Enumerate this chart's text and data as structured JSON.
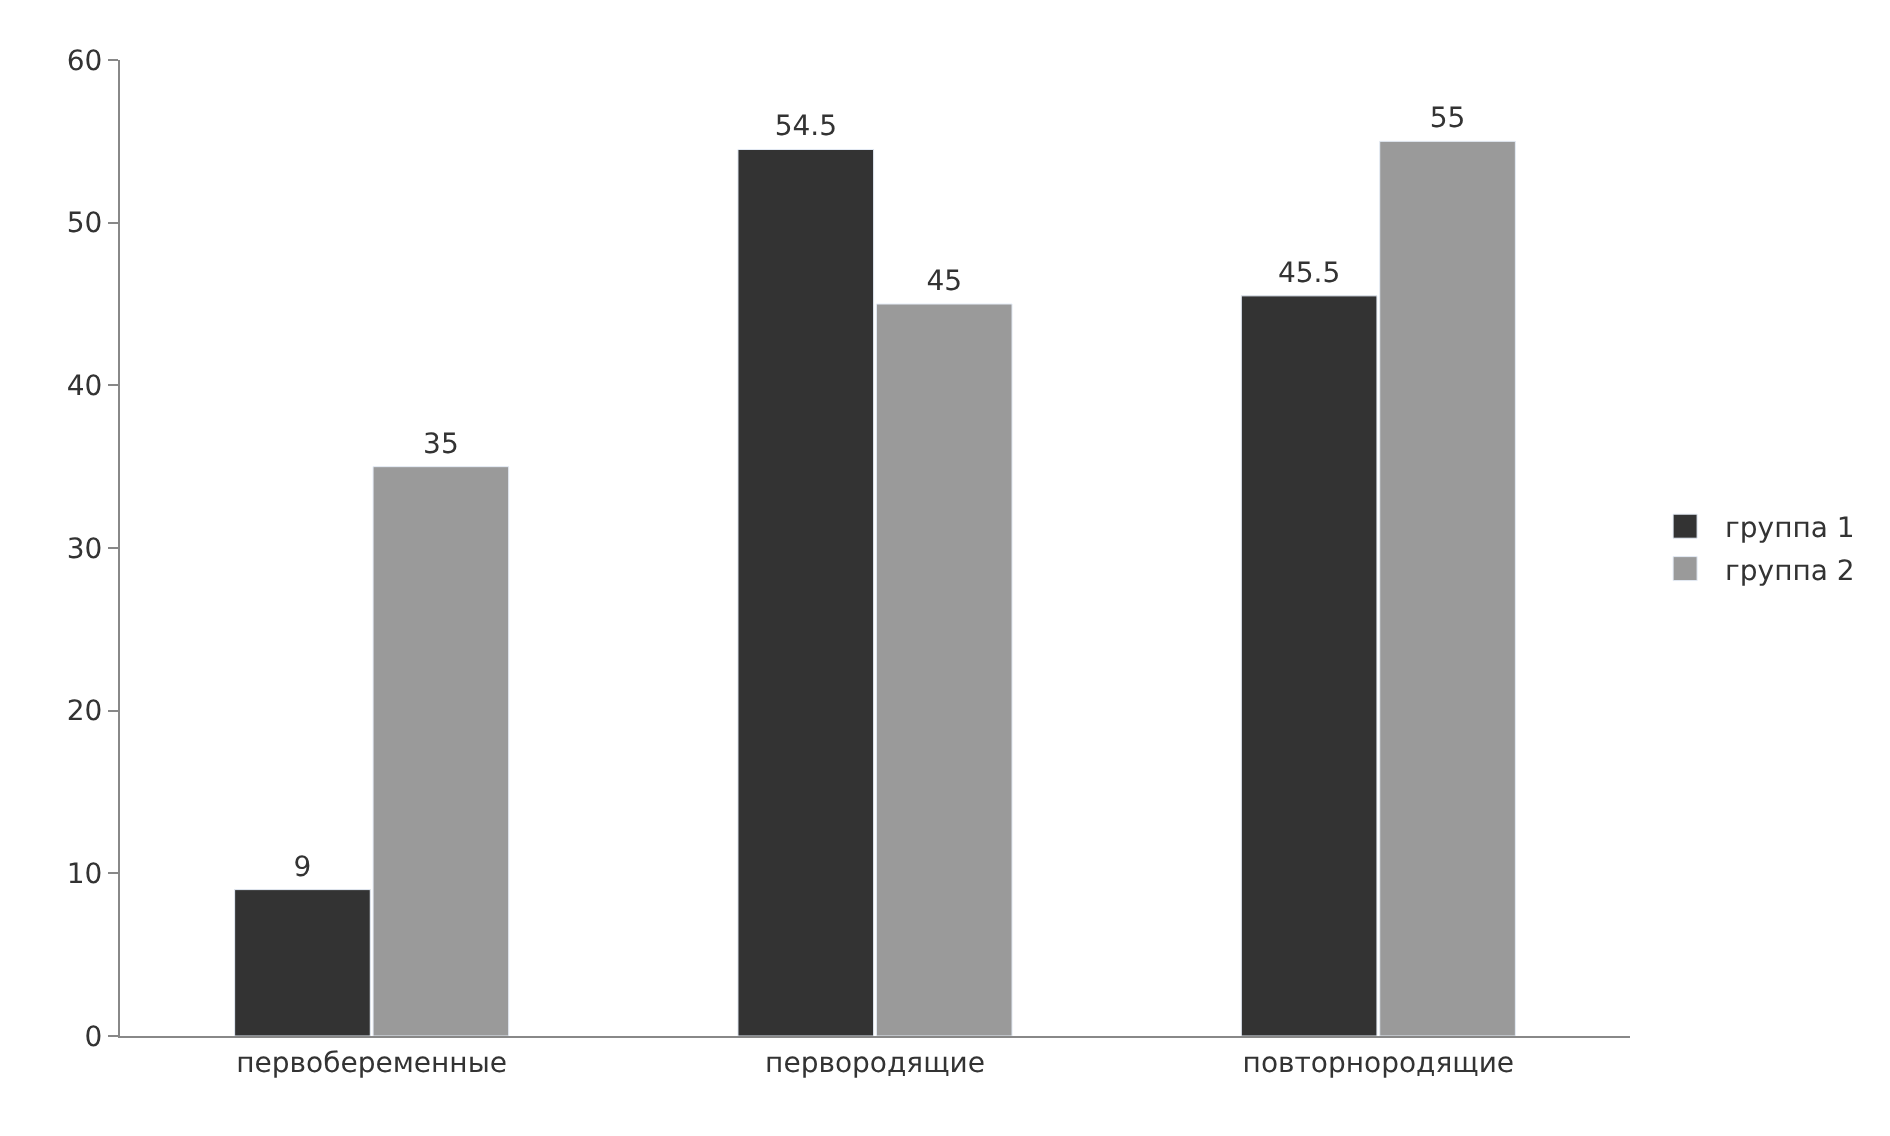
{
  "chart_data": {
    "type": "bar",
    "categories": [
      "первобеременные",
      "первородящие",
      "повторнородящие"
    ],
    "series": [
      {
        "name": "группа 1",
        "color": "#333333",
        "values": [
          9,
          54.5,
          45.5
        ]
      },
      {
        "name": "группа 2",
        "color": "#9a9a9a",
        "values": [
          35,
          45,
          55
        ]
      }
    ],
    "ylim": [
      0,
      60
    ],
    "yticks": [
      0,
      10,
      20,
      30,
      40,
      50,
      60
    ],
    "data_labels": true,
    "legend": "right",
    "grid": false
  }
}
